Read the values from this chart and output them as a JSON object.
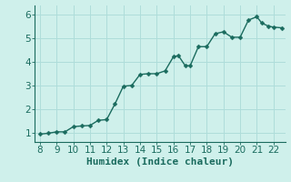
{
  "x": [
    8,
    8.5,
    9,
    9.5,
    10,
    10.5,
    11,
    11.5,
    12,
    12.5,
    13,
    13.5,
    14,
    14.5,
    15,
    15.5,
    16,
    16.3,
    16.7,
    17,
    17.5,
    18,
    18.5,
    19,
    19.5,
    20,
    20.5,
    21,
    21.3,
    21.7,
    22,
    22.5
  ],
  "y": [
    0.93,
    0.97,
    1.03,
    1.03,
    1.25,
    1.28,
    1.3,
    1.52,
    1.55,
    2.22,
    2.97,
    3.0,
    3.47,
    3.5,
    3.5,
    3.62,
    4.22,
    4.27,
    3.85,
    3.83,
    4.65,
    4.65,
    5.2,
    5.28,
    5.05,
    5.05,
    5.78,
    5.92,
    5.65,
    5.52,
    5.48,
    5.45
  ],
  "line_color": "#1a6b5e",
  "marker_color": "#1a6b5e",
  "bg_color": "#cff0eb",
  "grid_color": "#aeddda",
  "xlabel": "Humidex (Indice chaleur)",
  "xlim": [
    7.7,
    22.7
  ],
  "ylim": [
    0.6,
    6.4
  ],
  "xticks": [
    8,
    9,
    10,
    11,
    12,
    13,
    14,
    15,
    16,
    17,
    18,
    19,
    20,
    21,
    22
  ],
  "yticks": [
    1,
    2,
    3,
    4,
    5,
    6
  ],
  "marker_size": 2.5,
  "line_width": 1.0,
  "tick_fontsize": 7.5,
  "label_fontsize": 8.0
}
